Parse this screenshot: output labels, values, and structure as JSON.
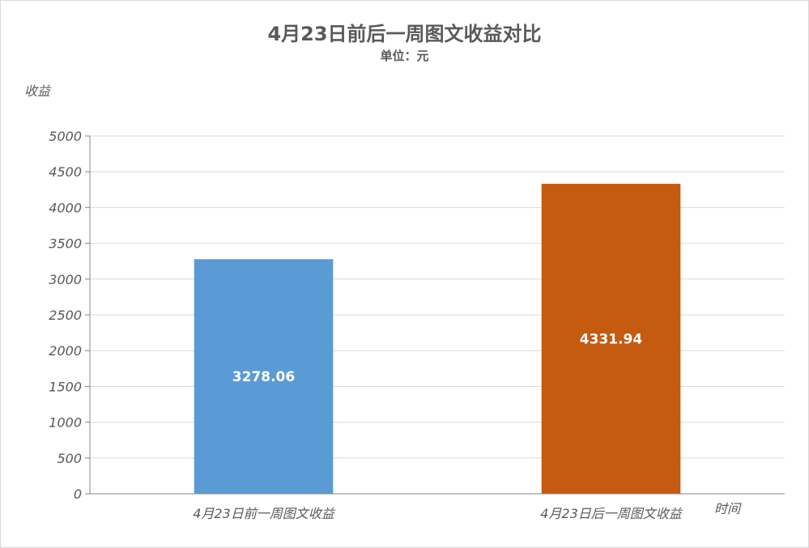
{
  "chart_data": {
    "type": "bar",
    "title": "4月23日前后一周图文收益对比",
    "subtitle": "单位：元",
    "xlabel": "时间",
    "ylabel": "收益",
    "categories": [
      "4月23日前一周图文收益",
      "4月23日后一周图文收益"
    ],
    "values": [
      3278.06,
      4331.94
    ],
    "data_labels": [
      "3278.06",
      "4331.94"
    ],
    "bar_colors": [
      "#5b9bd5",
      "#c55a11"
    ],
    "ylim": [
      0,
      5000
    ],
    "yticks": [
      "0",
      "500",
      "1000",
      "1500",
      "2000",
      "2500",
      "3000",
      "3500",
      "4000",
      "4500",
      "5000"
    ],
    "grid": true,
    "legend": "none"
  }
}
